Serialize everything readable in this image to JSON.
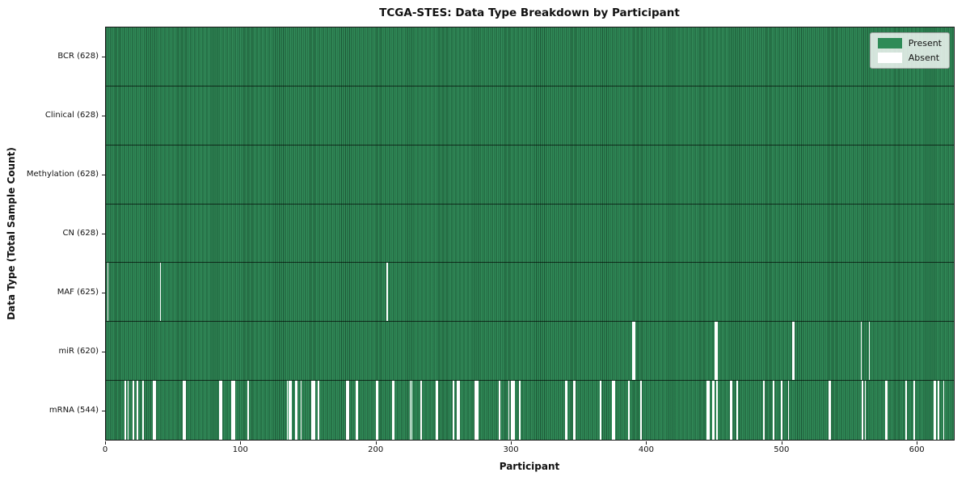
{
  "chart_data": {
    "type": "heatmap",
    "title": "TCGA-STES: Data Type Breakdown by Participant",
    "xlabel": "Participant",
    "ylabel": "Data Type (Total Sample Count)",
    "n_participants": 628,
    "x_ticks": [
      0,
      100,
      200,
      300,
      400,
      500,
      600
    ],
    "grid": false,
    "colors": {
      "present": "#2e8b57",
      "absent": "#ffffff"
    },
    "legend": {
      "position": "upper right",
      "entries": [
        {
          "label": "Present",
          "color": "#2e8b57"
        },
        {
          "label": "Absent",
          "color": "#ffffff"
        }
      ]
    },
    "rows": [
      {
        "label": "BCR (628)",
        "data_type": "BCR",
        "present_count": 628,
        "absent_participants": []
      },
      {
        "label": "Clinical (628)",
        "data_type": "Clinical",
        "present_count": 628,
        "absent_participants": []
      },
      {
        "label": "Methylation (628)",
        "data_type": "Methylation",
        "present_count": 628,
        "absent_participants": []
      },
      {
        "label": "CN (628)",
        "data_type": "CN",
        "present_count": 628,
        "absent_participants": []
      },
      {
        "label": "MAF (625)",
        "data_type": "MAF",
        "present_count": 625,
        "absent_participants": [
          1,
          40,
          208
        ]
      },
      {
        "label": "miR (620)",
        "data_type": "miR",
        "present_count": 620,
        "absent_participants": [
          390,
          391,
          451,
          452,
          508,
          509,
          559,
          565
        ]
      },
      {
        "label": "mRNA (544)",
        "data_type": "mRNA",
        "present_count": 544,
        "absent_participants": [
          14,
          16,
          20,
          23,
          27,
          35,
          36,
          57,
          58,
          84,
          85,
          93,
          94,
          95,
          105,
          134,
          135,
          136,
          137,
          140,
          141,
          144,
          152,
          153,
          154,
          157,
          178,
          179,
          185,
          186,
          200,
          201,
          212,
          213,
          225,
          226,
          233,
          244,
          245,
          257,
          260,
          261,
          273,
          274,
          275,
          291,
          298,
          300,
          301,
          302,
          306,
          340,
          341,
          346,
          347,
          366,
          375,
          376,
          387,
          396,
          445,
          446,
          449,
          450,
          452,
          462,
          463,
          467,
          487,
          494,
          500,
          505,
          535,
          536,
          560,
          562,
          577,
          578,
          592,
          598,
          613,
          614,
          616,
          620
        ]
      }
    ]
  }
}
